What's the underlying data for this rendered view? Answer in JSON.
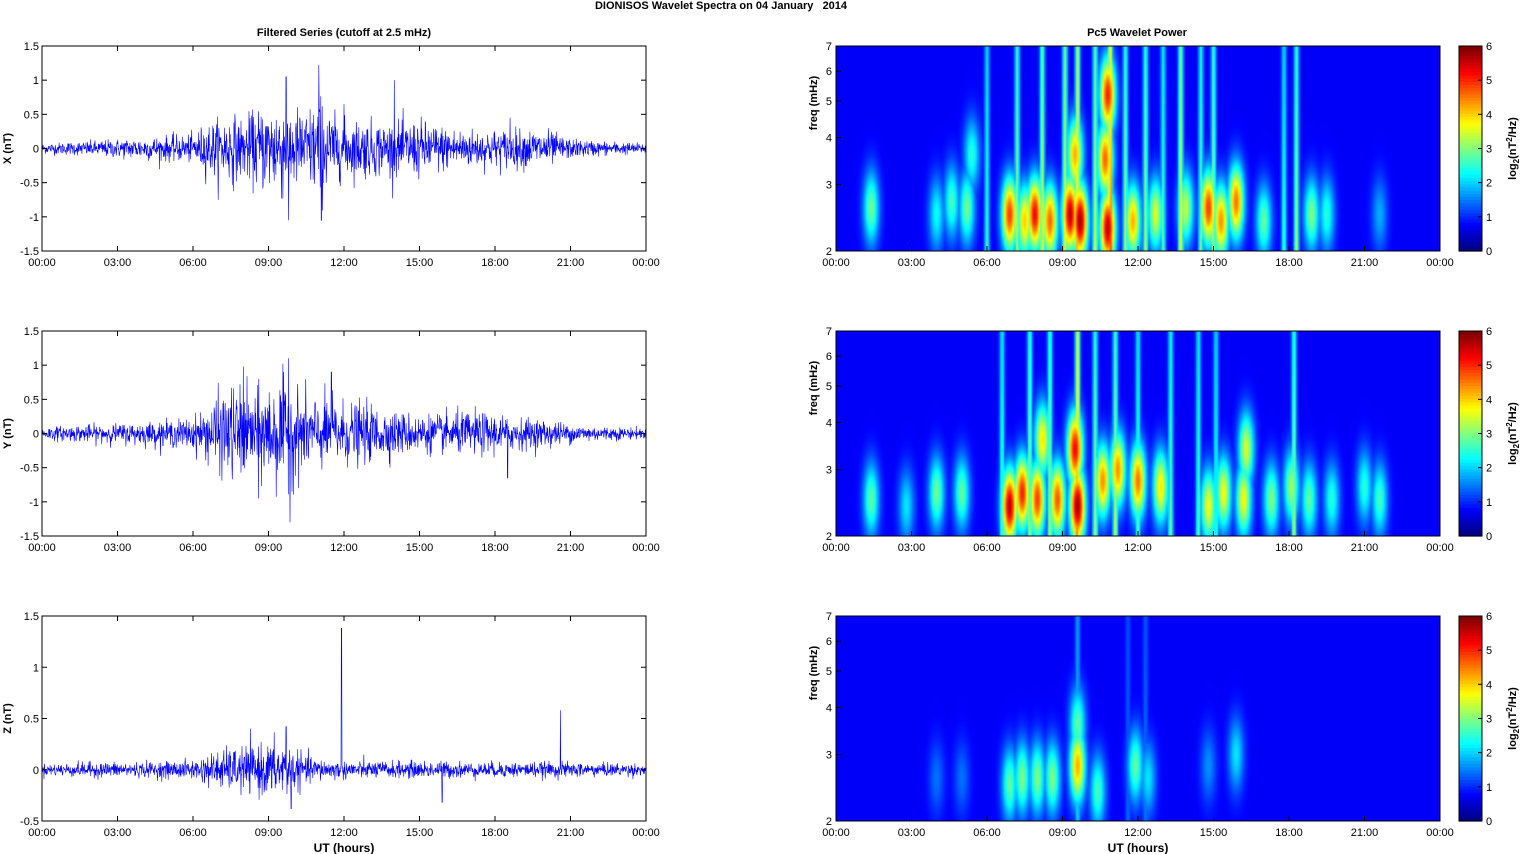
{
  "figure": {
    "title": "DIONISOS Wavelet Spectra on 04 January   2014",
    "left_column_title": "Filtered Series (cutoff at 2.5 mHz)",
    "right_column_title": "Pc5 Wavelet Power",
    "xlabel": "UT (hours)"
  },
  "colors": {
    "trace": "#0000ff",
    "background": "#ffffff",
    "colormap": "jet",
    "spectrogram_background": "#00008f"
  },
  "chart_data": [
    {
      "type": "line",
      "panel": "X",
      "ylabel": "X (nT)",
      "xlim": [
        0,
        24
      ],
      "ylim": [
        -1.5,
        1.5
      ],
      "xticks": [
        "00:00",
        "03:00",
        "06:00",
        "09:00",
        "12:00",
        "15:00",
        "18:00",
        "21:00",
        "00:00"
      ],
      "yticks": [
        "-1.5",
        "-1",
        "-0.5",
        "0",
        "0.5",
        "1",
        "1.5"
      ],
      "envelope": {
        "hours": [
          0,
          1,
          2,
          3,
          4,
          5,
          6,
          6.5,
          7,
          7.5,
          8,
          8.5,
          9,
          9.5,
          10,
          10.5,
          11,
          11.5,
          12,
          13,
          14,
          15,
          16,
          17,
          18,
          19,
          20,
          21,
          22,
          23,
          24
        ],
        "amplitude": [
          0.08,
          0.1,
          0.12,
          0.15,
          0.18,
          0.2,
          0.22,
          0.4,
          0.45,
          0.55,
          0.45,
          0.6,
          0.7,
          0.8,
          0.65,
          0.6,
          0.85,
          0.55,
          0.45,
          0.45,
          0.4,
          0.45,
          0.35,
          0.3,
          0.3,
          0.3,
          0.3,
          0.15,
          0.12,
          0.1,
          0.08
        ]
      },
      "peaks": [
        {
          "hour": 9.7,
          "value": 1.05
        },
        {
          "hour": 9.8,
          "value": -1.05
        },
        {
          "hour": 11.0,
          "value": 1.22
        },
        {
          "hour": 11.1,
          "value": -1.05
        },
        {
          "hour": 14.0,
          "value": 1.0
        },
        {
          "hour": 7.0,
          "value": -0.75
        },
        {
          "hour": 12.0,
          "value": 0.65
        },
        {
          "hour": 18.6,
          "value": 0.45
        }
      ]
    },
    {
      "type": "line",
      "panel": "Y",
      "ylabel": "Y (nT)",
      "xlim": [
        0,
        24
      ],
      "ylim": [
        -1.5,
        1.5
      ],
      "xticks": [
        "00:00",
        "03:00",
        "06:00",
        "09:00",
        "12:00",
        "15:00",
        "18:00",
        "21:00",
        "00:00"
      ],
      "yticks": [
        "-1.5",
        "-1",
        "-0.5",
        "0",
        "0.5",
        "1",
        "1.5"
      ],
      "envelope": {
        "hours": [
          0,
          1,
          2,
          3,
          4,
          5,
          6,
          6.5,
          7,
          7.5,
          8,
          8.5,
          9,
          9.5,
          10,
          10.5,
          11,
          11.5,
          12,
          13,
          14,
          15,
          16,
          17,
          18,
          19,
          20,
          21,
          22,
          23,
          24
        ],
        "amplitude": [
          0.1,
          0.12,
          0.14,
          0.15,
          0.18,
          0.2,
          0.25,
          0.4,
          0.6,
          0.75,
          0.7,
          0.65,
          0.8,
          0.85,
          0.75,
          0.6,
          0.55,
          0.55,
          0.5,
          0.45,
          0.35,
          0.3,
          0.3,
          0.35,
          0.3,
          0.25,
          0.22,
          0.15,
          0.12,
          0.1,
          0.08
        ]
      },
      "peaks": [
        {
          "hour": 9.8,
          "value": 1.1
        },
        {
          "hour": 9.85,
          "value": -1.3
        },
        {
          "hour": 8.0,
          "value": 0.98
        },
        {
          "hour": 8.6,
          "value": -0.95
        },
        {
          "hour": 18.5,
          "value": -0.65
        },
        {
          "hour": 11.5,
          "value": 0.9
        }
      ]
    },
    {
      "type": "line",
      "panel": "Z",
      "ylabel": "Z (nT)",
      "xlim": [
        0,
        24
      ],
      "ylim": [
        -0.5,
        1.5
      ],
      "xticks": [
        "00:00",
        "03:00",
        "06:00",
        "09:00",
        "12:00",
        "15:00",
        "18:00",
        "21:00",
        "00:00"
      ],
      "yticks": [
        "-0.5",
        "0",
        "0.5",
        "1",
        "1.5"
      ],
      "envelope": {
        "hours": [
          0,
          1,
          2,
          3,
          4,
          5,
          6,
          6.5,
          7,
          7.5,
          8,
          8.5,
          9,
          9.5,
          10,
          10.5,
          11,
          11.5,
          12,
          13,
          14,
          15,
          16,
          17,
          18,
          19,
          20,
          21,
          22,
          23,
          24
        ],
        "amplitude": [
          0.06,
          0.07,
          0.08,
          0.08,
          0.08,
          0.09,
          0.1,
          0.15,
          0.2,
          0.22,
          0.25,
          0.25,
          0.28,
          0.3,
          0.22,
          0.15,
          0.12,
          0.1,
          0.1,
          0.09,
          0.09,
          0.09,
          0.09,
          0.08,
          0.08,
          0.08,
          0.08,
          0.08,
          0.07,
          0.07,
          0.06
        ]
      },
      "peaks": [
        {
          "hour": 11.9,
          "value": 1.38
        },
        {
          "hour": 20.6,
          "value": 0.58
        },
        {
          "hour": 9.7,
          "value": 0.42
        },
        {
          "hour": 9.9,
          "value": -0.38
        },
        {
          "hour": 15.9,
          "value": -0.32
        }
      ]
    },
    {
      "type": "heatmap",
      "panel": "X",
      "ylabel": "freq (mHz)",
      "yscale": "log",
      "xlim": [
        0,
        24
      ],
      "ylim": [
        2,
        7
      ],
      "xticks": [
        "00:00",
        "03:00",
        "06:00",
        "09:00",
        "12:00",
        "15:00",
        "18:00",
        "21:00",
        "00:00"
      ],
      "yticks": [
        "2",
        "3",
        "4",
        "5",
        "6",
        "7"
      ],
      "colorbar": {
        "label": "log2(nT2/Hz)",
        "label_main": "log",
        "label_sub": "2",
        "label_rest_1": "(nT",
        "label_sup": "2",
        "label_rest_2": "/Hz)",
        "range": [
          0,
          6
        ],
        "ticks": [
          "0",
          "1",
          "2",
          "3",
          "4",
          "5",
          "6"
        ]
      },
      "blobs": [
        {
          "hour": 1.4,
          "freq": 2.6,
          "power": 2.5
        },
        {
          "hour": 4.0,
          "freq": 2.5,
          "power": 1.8
        },
        {
          "hour": 4.6,
          "freq": 2.7,
          "power": 2.2
        },
        {
          "hour": 5.2,
          "freq": 2.6,
          "power": 2.5
        },
        {
          "hour": 5.4,
          "freq": 3.6,
          "power": 2.0
        },
        {
          "hour": 6.9,
          "freq": 2.5,
          "power": 4.8
        },
        {
          "hour": 7.5,
          "freq": 2.4,
          "power": 3.8
        },
        {
          "hour": 7.9,
          "freq": 2.5,
          "power": 5.2
        },
        {
          "hour": 8.5,
          "freq": 2.4,
          "power": 4.5
        },
        {
          "hour": 9.3,
          "freq": 2.5,
          "power": 5.6
        },
        {
          "hour": 9.7,
          "freq": 2.4,
          "power": 5.8
        },
        {
          "hour": 9.5,
          "freq": 3.6,
          "power": 4.0
        },
        {
          "hour": 10.7,
          "freq": 3.5,
          "power": 4.5
        },
        {
          "hour": 10.8,
          "freq": 5.2,
          "power": 5.0
        },
        {
          "hour": 10.8,
          "freq": 2.3,
          "power": 5.6
        },
        {
          "hour": 11.8,
          "freq": 2.4,
          "power": 4.0
        },
        {
          "hour": 12.7,
          "freq": 2.5,
          "power": 3.2
        },
        {
          "hour": 13.9,
          "freq": 2.6,
          "power": 3.0
        },
        {
          "hour": 14.8,
          "freq": 2.6,
          "power": 4.8
        },
        {
          "hour": 15.3,
          "freq": 2.4,
          "power": 4.2
        },
        {
          "hour": 15.9,
          "freq": 2.7,
          "power": 4.4
        },
        {
          "hour": 17.0,
          "freq": 2.4,
          "power": 2.4
        },
        {
          "hour": 18.9,
          "freq": 2.5,
          "power": 2.6
        },
        {
          "hour": 19.5,
          "freq": 2.5,
          "power": 2.0
        },
        {
          "hour": 21.6,
          "freq": 2.5,
          "power": 1.2
        }
      ],
      "streaks": [
        {
          "hour": 6.0,
          "power": 2.2
        },
        {
          "hour": 7.2,
          "power": 3.0
        },
        {
          "hour": 8.2,
          "power": 3.4
        },
        {
          "hour": 9.1,
          "power": 3.6
        },
        {
          "hour": 9.6,
          "power": 4.2
        },
        {
          "hour": 10.3,
          "power": 3.4
        },
        {
          "hour": 10.9,
          "power": 5.0
        },
        {
          "hour": 11.5,
          "power": 3.0
        },
        {
          "hour": 12.3,
          "power": 3.0
        },
        {
          "hour": 13.0,
          "power": 2.4
        },
        {
          "hour": 13.7,
          "power": 3.6
        },
        {
          "hour": 14.5,
          "power": 2.6
        },
        {
          "hour": 15.0,
          "power": 3.0
        },
        {
          "hour": 17.8,
          "power": 2.2
        },
        {
          "hour": 18.3,
          "power": 3.0
        }
      ]
    },
    {
      "type": "heatmap",
      "panel": "Y",
      "ylabel": "freq (mHz)",
      "yscale": "log",
      "xlim": [
        0,
        24
      ],
      "ylim": [
        2,
        7
      ],
      "xticks": [
        "00:00",
        "03:00",
        "06:00",
        "09:00",
        "12:00",
        "15:00",
        "18:00",
        "21:00",
        "00:00"
      ],
      "yticks": [
        "2",
        "3",
        "4",
        "5",
        "6",
        "7"
      ],
      "colorbar": {
        "label": "log2(nT2/Hz)",
        "label_main": "log",
        "label_sub": "2",
        "label_rest_1": "(nT",
        "label_sup": "2",
        "label_rest_2": "/Hz)",
        "range": [
          0,
          6
        ],
        "ticks": [
          "0",
          "1",
          "2",
          "3",
          "4",
          "5",
          "6"
        ]
      },
      "blobs": [
        {
          "hour": 1.4,
          "freq": 2.5,
          "power": 2.4
        },
        {
          "hour": 2.8,
          "freq": 2.4,
          "power": 1.6
        },
        {
          "hour": 4.0,
          "freq": 2.6,
          "power": 2.5
        },
        {
          "hour": 5.0,
          "freq": 2.6,
          "power": 2.4
        },
        {
          "hour": 6.9,
          "freq": 2.4,
          "power": 5.6
        },
        {
          "hour": 7.4,
          "freq": 2.6,
          "power": 5.0
        },
        {
          "hour": 8.0,
          "freq": 2.5,
          "power": 4.8
        },
        {
          "hour": 8.2,
          "freq": 3.6,
          "power": 3.6
        },
        {
          "hour": 8.8,
          "freq": 2.5,
          "power": 4.6
        },
        {
          "hour": 9.6,
          "freq": 2.4,
          "power": 5.8
        },
        {
          "hour": 9.5,
          "freq": 3.4,
          "power": 5.2
        },
        {
          "hour": 10.6,
          "freq": 2.8,
          "power": 4.2
        },
        {
          "hour": 11.2,
          "freq": 3.0,
          "power": 4.2
        },
        {
          "hour": 12.0,
          "freq": 2.8,
          "power": 4.4
        },
        {
          "hour": 12.9,
          "freq": 2.7,
          "power": 3.6
        },
        {
          "hour": 14.8,
          "freq": 2.4,
          "power": 3.4
        },
        {
          "hour": 15.4,
          "freq": 2.6,
          "power": 3.4
        },
        {
          "hour": 16.3,
          "freq": 3.4,
          "power": 3.2
        },
        {
          "hour": 16.2,
          "freq": 2.5,
          "power": 3.4
        },
        {
          "hour": 17.3,
          "freq": 2.5,
          "power": 2.6
        },
        {
          "hour": 18.1,
          "freq": 2.7,
          "power": 2.8
        },
        {
          "hour": 18.8,
          "freq": 2.5,
          "power": 2.4
        },
        {
          "hour": 19.7,
          "freq": 2.5,
          "power": 2.0
        },
        {
          "hour": 21.0,
          "freq": 2.7,
          "power": 2.0
        },
        {
          "hour": 21.6,
          "freq": 2.5,
          "power": 2.2
        }
      ],
      "streaks": [
        {
          "hour": 6.6,
          "power": 2.4
        },
        {
          "hour": 7.7,
          "power": 3.0
        },
        {
          "hour": 8.5,
          "power": 3.0
        },
        {
          "hour": 9.6,
          "power": 4.6
        },
        {
          "hour": 10.3,
          "power": 3.0
        },
        {
          "hour": 11.1,
          "power": 3.2
        },
        {
          "hour": 12.0,
          "power": 2.4
        },
        {
          "hour": 13.3,
          "power": 2.6
        },
        {
          "hour": 14.4,
          "power": 2.4
        },
        {
          "hour": 15.1,
          "power": 2.2
        },
        {
          "hour": 18.2,
          "power": 3.0
        }
      ]
    },
    {
      "type": "heatmap",
      "panel": "Z",
      "ylabel": "freq (mHz)",
      "yscale": "log",
      "xlim": [
        0,
        24
      ],
      "ylim": [
        2,
        7
      ],
      "xticks": [
        "00:00",
        "03:00",
        "06:00",
        "09:00",
        "12:00",
        "15:00",
        "18:00",
        "21:00",
        "00:00"
      ],
      "yticks": [
        "2",
        "3",
        "4",
        "5",
        "6",
        "7"
      ],
      "colorbar": {
        "label": "log2(nT2/Hz)",
        "label_main": "log",
        "label_sub": "2",
        "label_rest_1": "(nT",
        "label_sup": "2",
        "label_rest_2": "/Hz)",
        "range": [
          0,
          6
        ],
        "ticks": [
          "0",
          "1",
          "2",
          "3",
          "4",
          "5",
          "6"
        ]
      },
      "blobs": [
        {
          "hour": 4.0,
          "freq": 2.6,
          "power": 0.8
        },
        {
          "hour": 5.0,
          "freq": 2.6,
          "power": 0.8
        },
        {
          "hour": 6.9,
          "freq": 2.5,
          "power": 2.4
        },
        {
          "hour": 7.4,
          "freq": 2.6,
          "power": 2.6
        },
        {
          "hour": 8.0,
          "freq": 2.6,
          "power": 2.6
        },
        {
          "hour": 8.6,
          "freq": 2.6,
          "power": 2.6
        },
        {
          "hour": 9.6,
          "freq": 2.8,
          "power": 4.0
        },
        {
          "hour": 9.6,
          "freq": 3.6,
          "power": 2.4
        },
        {
          "hour": 10.4,
          "freq": 2.4,
          "power": 2.2
        },
        {
          "hour": 11.9,
          "freq": 2.8,
          "power": 2.4
        },
        {
          "hour": 12.4,
          "freq": 2.6,
          "power": 1.6
        },
        {
          "hour": 14.8,
          "freq": 2.8,
          "power": 1.0
        },
        {
          "hour": 15.9,
          "freq": 3.0,
          "power": 1.6
        }
      ],
      "streaks": [
        {
          "hour": 9.6,
          "power": 1.6
        },
        {
          "hour": 11.6,
          "power": 0.8
        },
        {
          "hour": 12.3,
          "power": 0.9
        }
      ]
    }
  ]
}
